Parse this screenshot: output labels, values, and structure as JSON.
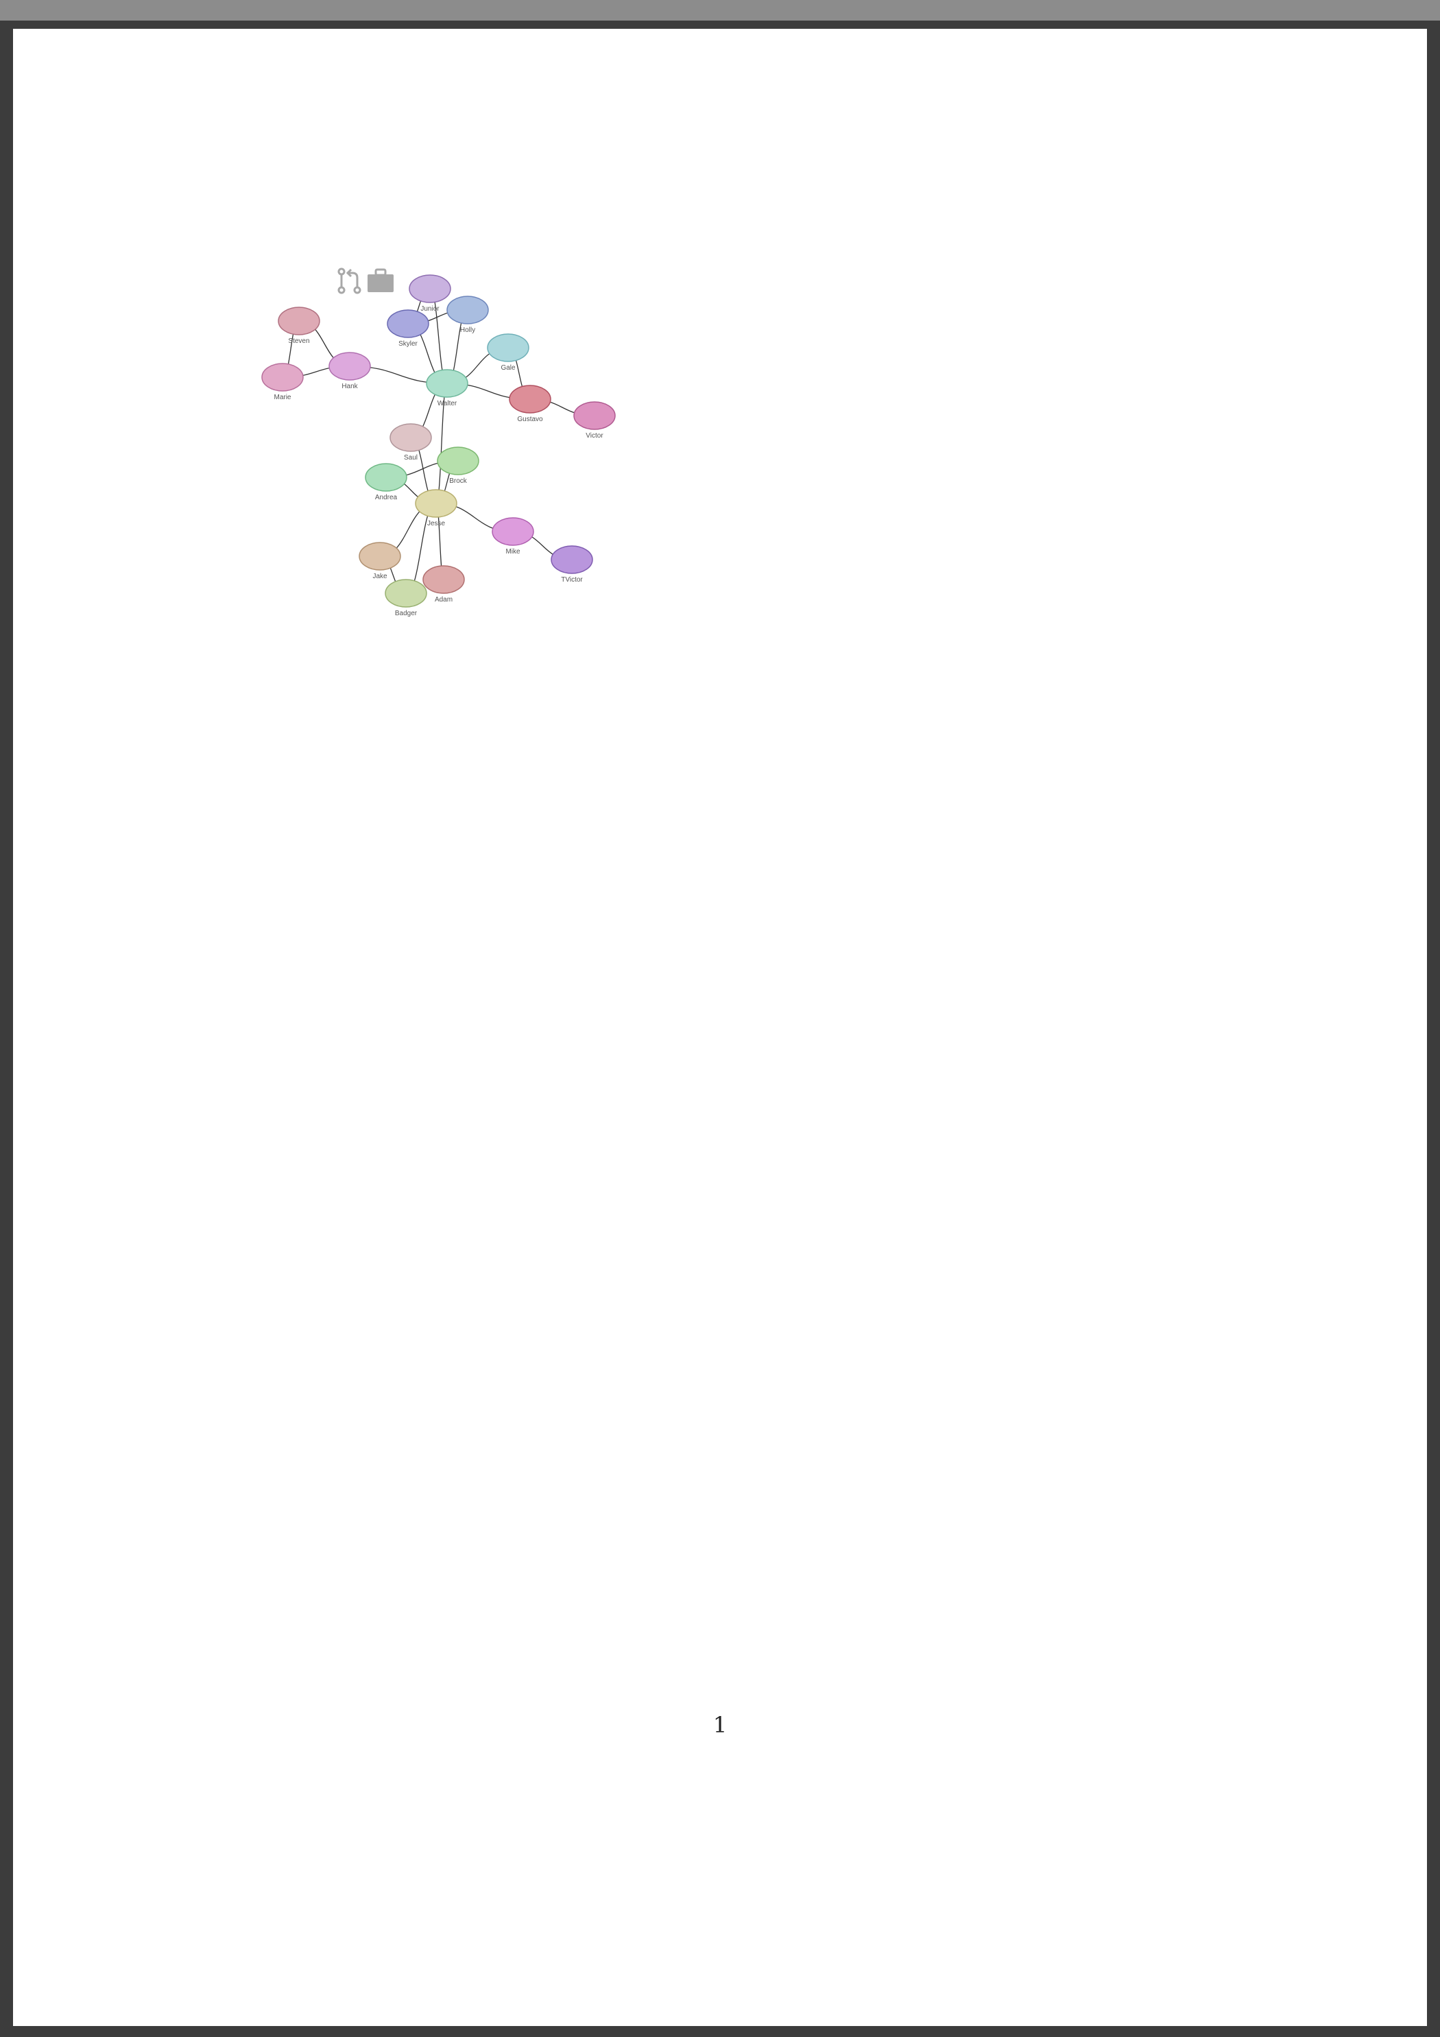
{
  "page_number": "1",
  "toolbar": {
    "icons": [
      "pull-request-icon",
      "briefcase-icon"
    ],
    "icon_color": "#a8a8a8"
  },
  "nodes": [
    {
      "id": "junior",
      "label": "Junior",
      "fill": "#c9b2e0",
      "stroke": "#8d6db0"
    },
    {
      "id": "holly",
      "label": "Holly",
      "fill": "#a9bde0",
      "stroke": "#6e86bb"
    },
    {
      "id": "skyler",
      "label": "Skyler",
      "fill": "#a9a9df",
      "stroke": "#6a6ab2"
    },
    {
      "id": "steven",
      "label": "Steven",
      "fill": "#deaab5",
      "stroke": "#b07080"
    },
    {
      "id": "hank",
      "label": "Hank",
      "fill": "#dda9dd",
      "stroke": "#b070b0"
    },
    {
      "id": "marie",
      "label": "Marie",
      "fill": "#e2a9c8",
      "stroke": "#b8709c"
    },
    {
      "id": "gale",
      "label": "Gale",
      "fill": "#acd8dd",
      "stroke": "#6fb0b8"
    },
    {
      "id": "walter",
      "label": "Walter",
      "fill": "#ace0cc",
      "stroke": "#6fb89c"
    },
    {
      "id": "gustavo",
      "label": "Gustavo",
      "fill": "#dd8e98",
      "stroke": "#b05060"
    },
    {
      "id": "victor",
      "label": "Victor",
      "fill": "#dd92c0",
      "stroke": "#b05a90"
    },
    {
      "id": "saul",
      "label": "Saul",
      "fill": "#dec4c6",
      "stroke": "#b0959a"
    },
    {
      "id": "brock",
      "label": "Brock",
      "fill": "#b6e0ac",
      "stroke": "#7cb870"
    },
    {
      "id": "andrea",
      "label": "Andrea",
      "fill": "#ace0bd",
      "stroke": "#6fb885"
    },
    {
      "id": "jesse",
      "label": "Jesse",
      "fill": "#e0dbac",
      "stroke": "#b8b070"
    },
    {
      "id": "mike",
      "label": "Mike",
      "fill": "#dd9cdd",
      "stroke": "#b060b0"
    },
    {
      "id": "tvictor",
      "label": "TVictor",
      "fill": "#b996dd",
      "stroke": "#7f5cb0"
    },
    {
      "id": "jake",
      "label": "Jake",
      "fill": "#ddc3aa",
      "stroke": "#b09070"
    },
    {
      "id": "adam",
      "label": "Adam",
      "fill": "#dda9a9",
      "stroke": "#b06f6f"
    },
    {
      "id": "badger",
      "label": "Badger",
      "fill": "#cbdcac",
      "stroke": "#98b070"
    }
  ],
  "edges": [
    [
      "walter",
      "junior"
    ],
    [
      "walter",
      "skyler"
    ],
    [
      "walter",
      "holly"
    ],
    [
      "junior",
      "skyler"
    ],
    [
      "skyler",
      "holly"
    ],
    [
      "walter",
      "gale"
    ],
    [
      "walter",
      "gustavo"
    ],
    [
      "walter",
      "hank"
    ],
    [
      "gustavo",
      "victor"
    ],
    [
      "gale",
      "gustavo"
    ],
    [
      "hank",
      "steven"
    ],
    [
      "hank",
      "marie"
    ],
    [
      "steven",
      "marie"
    ],
    [
      "walter",
      "saul"
    ],
    [
      "walter",
      "jesse"
    ],
    [
      "saul",
      "jesse"
    ],
    [
      "jesse",
      "brock"
    ],
    [
      "andrea",
      "brock"
    ],
    [
      "andrea",
      "jesse"
    ],
    [
      "jesse",
      "mike"
    ],
    [
      "mike",
      "tvictor"
    ],
    [
      "jesse",
      "jake"
    ],
    [
      "jesse",
      "adam"
    ],
    [
      "jesse",
      "badger"
    ],
    [
      "jake",
      "badger"
    ]
  ]
}
